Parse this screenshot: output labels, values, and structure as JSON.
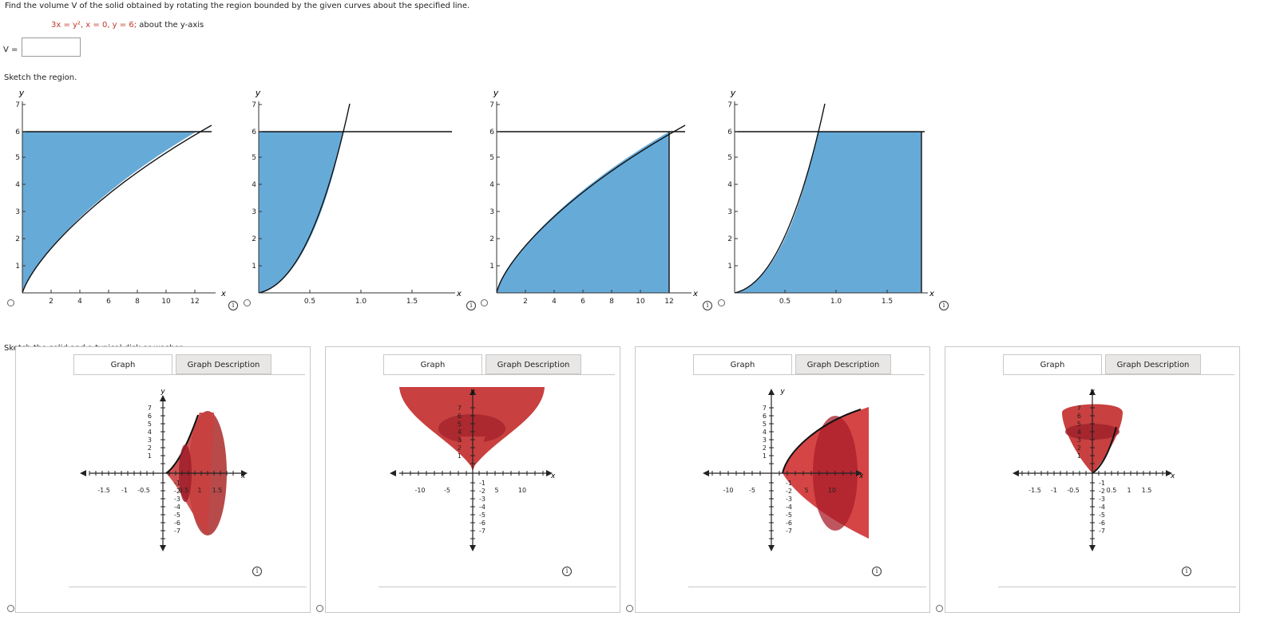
{
  "question": {
    "prompt": "Find the volume V of the solid obtained by rotating the region bounded by the given curves about the specified line.",
    "equation": "3x = y²,  x = 0,  y = 6;",
    "axis_text": "about the y-axis",
    "answer_label": "V =",
    "answer_value": ""
  },
  "section1_label": "Sketch the region.",
  "section2_label": "Sketch the solid and a typical disk or washer.",
  "region_graphs": [
    {
      "y_label": "y",
      "x_label": "x",
      "y_ticks": [
        "1",
        "2",
        "3",
        "4",
        "5",
        "6",
        "7"
      ],
      "x_ticks": [
        "2",
        "4",
        "6",
        "8",
        "10",
        "12"
      ]
    },
    {
      "y_label": "y",
      "x_label": "x",
      "y_ticks": [
        "1",
        "2",
        "3",
        "4",
        "5",
        "6",
        "7"
      ],
      "x_ticks": [
        "0.5",
        "1.0",
        "1.5"
      ]
    },
    {
      "y_label": "y",
      "x_label": "x",
      "y_ticks": [
        "1",
        "2",
        "3",
        "4",
        "5",
        "6",
        "7"
      ],
      "x_ticks": [
        "2",
        "4",
        "6",
        "8",
        "10",
        "12"
      ]
    },
    {
      "y_label": "y",
      "x_label": "x",
      "y_ticks": [
        "1",
        "2",
        "3",
        "4",
        "5",
        "6",
        "7"
      ],
      "x_ticks": [
        "0.5",
        "1.0",
        "1.5"
      ]
    }
  ],
  "solid_panels": [
    {
      "tab_graph": "Graph",
      "tab_desc": "Graph Description",
      "x_ticks": [
        "-1.5",
        "-1",
        "-0.5",
        "0.5",
        "1",
        "1.5"
      ],
      "y_ticks": [
        "7",
        "6",
        "5",
        "4",
        "3",
        "2",
        "1",
        "-1",
        "-2",
        "-3",
        "-4",
        "-5",
        "-6",
        "-7"
      ],
      "x_label": "x",
      "y_label": "y"
    },
    {
      "tab_graph": "Graph",
      "tab_desc": "Graph Description",
      "x_ticks": [
        "-10",
        "-5",
        "5",
        "10"
      ],
      "y_ticks": [
        "7",
        "6",
        "5",
        "4",
        "3",
        "2",
        "1",
        "-1",
        "-2",
        "-3",
        "-4",
        "-5",
        "-6",
        "-7"
      ],
      "x_label": "x",
      "y_label": "y"
    },
    {
      "tab_graph": "Graph",
      "tab_desc": "Graph Description",
      "x_ticks": [
        "-10",
        "-5",
        "5",
        "10"
      ],
      "y_ticks": [
        "7",
        "6",
        "5",
        "4",
        "3",
        "2",
        "1",
        "-1",
        "-2",
        "-3",
        "-4",
        "-5",
        "-6",
        "-7"
      ],
      "x_label": "x",
      "y_label": "y"
    },
    {
      "tab_graph": "Graph",
      "tab_desc": "Graph Description",
      "x_ticks": [
        "-1.5",
        "-1",
        "-0.5",
        "0.5",
        "1",
        "1.5"
      ],
      "y_ticks": [
        "7",
        "6",
        "5",
        "4",
        "3",
        "2",
        "1",
        "-1",
        "-2",
        "-3",
        "-4",
        "-5",
        "-6",
        "-7"
      ],
      "x_label": "x",
      "y_label": "y"
    }
  ],
  "info_icon": "info-icon",
  "colors": {
    "region_fill": "#66aad8",
    "solid_fill": "#c8403f",
    "solid_dark": "#9e1f2a",
    "solid_alt": "#b84a4a"
  }
}
